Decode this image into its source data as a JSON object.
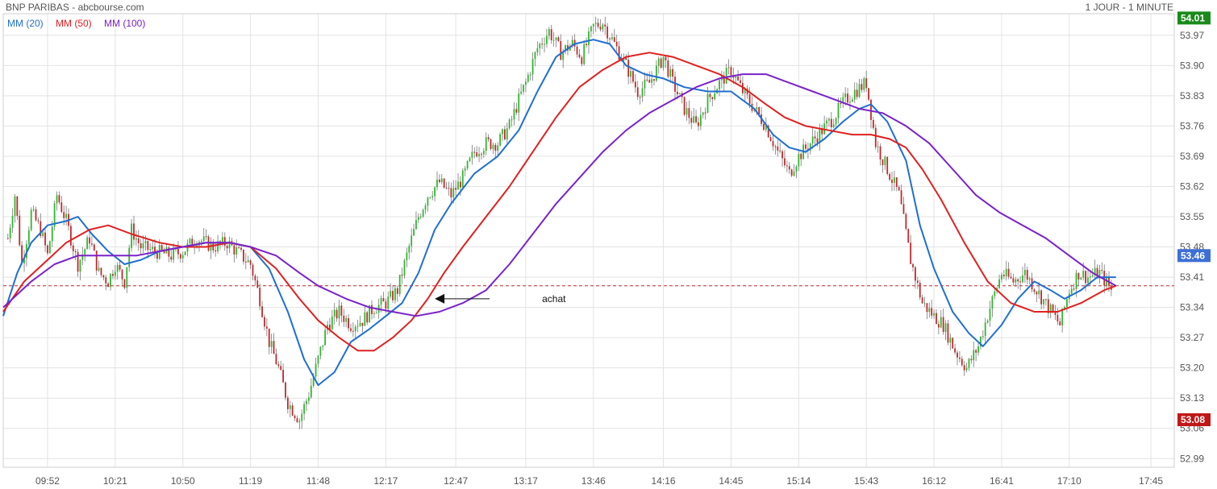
{
  "header": {
    "title": "BNP PARIBAS - abcbourse.com",
    "timeframe": "1 JOUR - 1 MINUTE"
  },
  "legend": [
    {
      "label": "MM (20)",
      "color": "#1f6fd0"
    },
    {
      "label": "MM (50)",
      "color": "#e02020"
    },
    {
      "label": "MM (100)",
      "color": "#7a22c8"
    }
  ],
  "colors": {
    "up": "#2db82d",
    "down": "#c0282c",
    "grid": "#e3e3e3",
    "reference_line": "#c0282c",
    "annotation": "#111111"
  },
  "badges": {
    "high": {
      "label": "54.01",
      "value": 54.01,
      "color": "#1a8a1a"
    },
    "current": {
      "label": "53.46",
      "value": 53.46,
      "color": "#3d6fd6"
    },
    "low": {
      "label": "53.08",
      "value": 53.08,
      "color": "#c01818"
    }
  },
  "annotation": {
    "text": "achat"
  },
  "chart_data": {
    "type": "candlestick",
    "x_ticks": [
      "09:52",
      "10:21",
      "10:50",
      "11:19",
      "11:48",
      "12:17",
      "12:47",
      "13:17",
      "13:46",
      "14:16",
      "14:45",
      "15:14",
      "15:43",
      "16:12",
      "16:41",
      "17:10",
      "17:45"
    ],
    "y_ticks": [
      53.97,
      53.9,
      53.83,
      53.76,
      53.69,
      53.62,
      53.55,
      53.48,
      53.41,
      53.34,
      53.27,
      53.2,
      53.13,
      53.06,
      52.99
    ],
    "y_range": [
      52.97,
      54.02
    ],
    "x_range": [
      "09:33",
      "17:55"
    ],
    "reference_level": 53.39,
    "annotation_point": {
      "time": "12:38",
      "price": 53.36
    },
    "price_path": [
      [
        "09:35",
        53.5
      ],
      [
        "09:38",
        53.6
      ],
      [
        "09:41",
        53.44
      ],
      [
        "09:45",
        53.56
      ],
      [
        "09:49",
        53.52
      ],
      [
        "09:52",
        53.46
      ],
      [
        "09:56",
        53.6
      ],
      [
        "10:00",
        53.54
      ],
      [
        "10:05",
        53.44
      ],
      [
        "10:10",
        53.5
      ],
      [
        "10:14",
        53.42
      ],
      [
        "10:18",
        53.4
      ],
      [
        "10:21",
        53.44
      ],
      [
        "10:25",
        53.4
      ],
      [
        "10:28",
        53.52
      ],
      [
        "10:32",
        53.48
      ],
      [
        "10:38",
        53.47
      ],
      [
        "10:45",
        53.46
      ],
      [
        "10:50",
        53.47
      ],
      [
        "10:56",
        53.5
      ],
      [
        "11:03",
        53.48
      ],
      [
        "11:09",
        53.49
      ],
      [
        "11:15",
        53.46
      ],
      [
        "11:19",
        53.44
      ],
      [
        "11:23",
        53.36
      ],
      [
        "11:27",
        53.26
      ],
      [
        "11:31",
        53.2
      ],
      [
        "11:35",
        53.12
      ],
      [
        "11:40",
        53.08
      ],
      [
        "11:44",
        53.14
      ],
      [
        "11:48",
        53.22
      ],
      [
        "11:52",
        53.3
      ],
      [
        "11:57",
        53.33
      ],
      [
        "12:02",
        53.3
      ],
      [
        "12:07",
        53.31
      ],
      [
        "12:12",
        53.34
      ],
      [
        "12:17",
        53.35
      ],
      [
        "12:22",
        53.38
      ],
      [
        "12:27",
        53.48
      ],
      [
        "12:31",
        53.55
      ],
      [
        "12:35",
        53.6
      ],
      [
        "12:40",
        53.63
      ],
      [
        "12:45",
        53.6
      ],
      [
        "12:50",
        53.64
      ],
      [
        "12:55",
        53.7
      ],
      [
        "13:00",
        53.72
      ],
      [
        "13:05",
        53.72
      ],
      [
        "13:10",
        53.76
      ],
      [
        "13:14",
        53.82
      ],
      [
        "13:17",
        53.86
      ],
      [
        "13:22",
        53.94
      ],
      [
        "13:27",
        53.98
      ],
      [
        "13:32",
        53.93
      ],
      [
        "13:37",
        53.95
      ],
      [
        "13:41",
        53.92
      ],
      [
        "13:46",
        53.99
      ],
      [
        "13:50",
        54.0
      ],
      [
        "13:55",
        53.95
      ],
      [
        "14:00",
        53.9
      ],
      [
        "14:05",
        53.84
      ],
      [
        "14:10",
        53.86
      ],
      [
        "14:16",
        53.92
      ],
      [
        "14:20",
        53.86
      ],
      [
        "14:25",
        53.8
      ],
      [
        "14:30",
        53.76
      ],
      [
        "14:35",
        53.82
      ],
      [
        "14:40",
        53.86
      ],
      [
        "14:45",
        53.89
      ],
      [
        "14:50",
        53.84
      ],
      [
        "14:55",
        53.8
      ],
      [
        "15:00",
        53.76
      ],
      [
        "15:05",
        53.7
      ],
      [
        "15:10",
        53.65
      ],
      [
        "15:14",
        53.69
      ],
      [
        "15:19",
        53.72
      ],
      [
        "15:24",
        53.75
      ],
      [
        "15:29",
        53.78
      ],
      [
        "15:34",
        53.82
      ],
      [
        "15:38",
        53.84
      ],
      [
        "15:43",
        53.86
      ],
      [
        "15:47",
        53.72
      ],
      [
        "15:52",
        53.66
      ],
      [
        "15:57",
        53.6
      ],
      [
        "16:02",
        53.45
      ],
      [
        "16:07",
        53.35
      ],
      [
        "16:12",
        53.32
      ],
      [
        "16:16",
        53.3
      ],
      [
        "16:21",
        53.24
      ],
      [
        "16:26",
        53.2
      ],
      [
        "16:31",
        53.25
      ],
      [
        "16:36",
        53.34
      ],
      [
        "16:41",
        53.42
      ],
      [
        "16:46",
        53.4
      ],
      [
        "16:51",
        53.42
      ],
      [
        "16:56",
        53.38
      ],
      [
        "17:01",
        53.34
      ],
      [
        "17:06",
        53.3
      ],
      [
        "17:10",
        53.38
      ],
      [
        "17:14",
        53.42
      ],
      [
        "17:18",
        53.41
      ],
      [
        "17:23",
        53.42
      ],
      [
        "17:28",
        53.38
      ]
    ],
    "series": [
      {
        "name": "MM (20)",
        "color": "#1f6fd0",
        "points": [
          [
            "09:33",
            53.32
          ],
          [
            "09:39",
            53.42
          ],
          [
            "09:45",
            53.49
          ],
          [
            "09:52",
            53.53
          ],
          [
            "10:00",
            53.54
          ],
          [
            "10:05",
            53.55
          ],
          [
            "10:11",
            53.51
          ],
          [
            "10:18",
            53.47
          ],
          [
            "10:25",
            53.44
          ],
          [
            "10:32",
            53.45
          ],
          [
            "10:40",
            53.47
          ],
          [
            "10:50",
            53.48
          ],
          [
            "11:00",
            53.49
          ],
          [
            "11:10",
            53.49
          ],
          [
            "11:19",
            53.48
          ],
          [
            "11:27",
            53.43
          ],
          [
            "11:35",
            53.33
          ],
          [
            "11:42",
            53.22
          ],
          [
            "11:48",
            53.16
          ],
          [
            "11:55",
            53.19
          ],
          [
            "12:02",
            53.26
          ],
          [
            "12:10",
            53.29
          ],
          [
            "12:17",
            53.32
          ],
          [
            "12:24",
            53.35
          ],
          [
            "12:31",
            53.42
          ],
          [
            "12:38",
            53.52
          ],
          [
            "12:45",
            53.58
          ],
          [
            "12:55",
            53.65
          ],
          [
            "13:05",
            53.69
          ],
          [
            "13:14",
            53.75
          ],
          [
            "13:22",
            53.84
          ],
          [
            "13:30",
            53.92
          ],
          [
            "13:38",
            53.95
          ],
          [
            "13:46",
            53.96
          ],
          [
            "13:53",
            53.95
          ],
          [
            "14:00",
            53.9
          ],
          [
            "14:08",
            53.88
          ],
          [
            "14:16",
            53.87
          ],
          [
            "14:25",
            53.85
          ],
          [
            "14:35",
            53.84
          ],
          [
            "14:45",
            53.84
          ],
          [
            "14:55",
            53.8
          ],
          [
            "15:03",
            53.74
          ],
          [
            "15:10",
            53.71
          ],
          [
            "15:17",
            53.7
          ],
          [
            "15:25",
            53.73
          ],
          [
            "15:33",
            53.77
          ],
          [
            "15:40",
            53.8
          ],
          [
            "15:45",
            53.81
          ],
          [
            "15:52",
            53.77
          ],
          [
            "16:00",
            53.68
          ],
          [
            "16:06",
            53.53
          ],
          [
            "16:12",
            53.43
          ],
          [
            "16:20",
            53.33
          ],
          [
            "16:27",
            53.28
          ],
          [
            "16:33",
            53.25
          ],
          [
            "16:41",
            53.3
          ],
          [
            "16:48",
            53.36
          ],
          [
            "16:55",
            53.4
          ],
          [
            "17:02",
            53.38
          ],
          [
            "17:08",
            53.36
          ],
          [
            "17:15",
            53.38
          ],
          [
            "17:22",
            53.41
          ],
          [
            "17:30",
            53.41
          ]
        ]
      },
      {
        "name": "MM (50)",
        "color": "#e02020",
        "points": [
          [
            "09:33",
            53.33
          ],
          [
            "09:42",
            53.4
          ],
          [
            "09:52",
            53.45
          ],
          [
            "10:00",
            53.49
          ],
          [
            "10:10",
            53.52
          ],
          [
            "10:18",
            53.53
          ],
          [
            "10:28",
            53.51
          ],
          [
            "10:40",
            53.49
          ],
          [
            "10:50",
            53.48
          ],
          [
            "11:00",
            53.48
          ],
          [
            "11:10",
            53.49
          ],
          [
            "11:19",
            53.48
          ],
          [
            "11:30",
            53.43
          ],
          [
            "11:40",
            53.36
          ],
          [
            "11:48",
            53.31
          ],
          [
            "11:57",
            53.27
          ],
          [
            "12:05",
            53.24
          ],
          [
            "12:12",
            53.24
          ],
          [
            "12:20",
            53.27
          ],
          [
            "12:28",
            53.31
          ],
          [
            "12:35",
            53.36
          ],
          [
            "12:42",
            53.42
          ],
          [
            "12:50",
            53.48
          ],
          [
            "13:00",
            53.55
          ],
          [
            "13:10",
            53.62
          ],
          [
            "13:20",
            53.7
          ],
          [
            "13:30",
            53.78
          ],
          [
            "13:40",
            53.85
          ],
          [
            "13:50",
            53.89
          ],
          [
            "14:00",
            53.92
          ],
          [
            "14:10",
            53.93
          ],
          [
            "14:20",
            53.92
          ],
          [
            "14:30",
            53.9
          ],
          [
            "14:40",
            53.88
          ],
          [
            "14:50",
            53.85
          ],
          [
            "15:00",
            53.81
          ],
          [
            "15:08",
            53.78
          ],
          [
            "15:17",
            53.76
          ],
          [
            "15:27",
            53.75
          ],
          [
            "15:37",
            53.74
          ],
          [
            "15:45",
            53.74
          ],
          [
            "15:53",
            53.73
          ],
          [
            "16:00",
            53.71
          ],
          [
            "16:07",
            53.66
          ],
          [
            "16:15",
            53.59
          ],
          [
            "16:25",
            53.49
          ],
          [
            "16:35",
            53.4
          ],
          [
            "16:45",
            53.35
          ],
          [
            "16:55",
            53.33
          ],
          [
            "17:05",
            53.33
          ],
          [
            "17:15",
            53.35
          ],
          [
            "17:25",
            53.38
          ],
          [
            "17:30",
            53.39
          ]
        ]
      },
      {
        "name": "MM (100)",
        "color": "#7a22c8",
        "points": [
          [
            "09:33",
            53.34
          ],
          [
            "09:45",
            53.4
          ],
          [
            "09:55",
            53.44
          ],
          [
            "10:05",
            53.46
          ],
          [
            "10:15",
            53.46
          ],
          [
            "10:30",
            53.46
          ],
          [
            "10:40",
            53.47
          ],
          [
            "10:50",
            53.48
          ],
          [
            "11:00",
            53.49
          ],
          [
            "11:10",
            53.49
          ],
          [
            "11:19",
            53.48
          ],
          [
            "11:30",
            53.46
          ],
          [
            "11:40",
            53.42
          ],
          [
            "11:48",
            53.39
          ],
          [
            "12:00",
            53.36
          ],
          [
            "12:10",
            53.34
          ],
          [
            "12:20",
            53.33
          ],
          [
            "12:30",
            53.32
          ],
          [
            "12:40",
            53.33
          ],
          [
            "12:50",
            53.35
          ],
          [
            "13:00",
            53.38
          ],
          [
            "13:10",
            53.44
          ],
          [
            "13:20",
            53.51
          ],
          [
            "13:30",
            53.58
          ],
          [
            "13:40",
            53.64
          ],
          [
            "13:50",
            53.7
          ],
          [
            "14:00",
            53.75
          ],
          [
            "14:10",
            53.79
          ],
          [
            "14:20",
            53.82
          ],
          [
            "14:30",
            53.85
          ],
          [
            "14:40",
            53.87
          ],
          [
            "14:50",
            53.88
          ],
          [
            "15:00",
            53.88
          ],
          [
            "15:10",
            53.86
          ],
          [
            "15:20",
            53.84
          ],
          [
            "15:30",
            53.82
          ],
          [
            "15:40",
            53.8
          ],
          [
            "15:50",
            53.79
          ],
          [
            "16:00",
            53.76
          ],
          [
            "16:10",
            53.72
          ],
          [
            "16:20",
            53.66
          ],
          [
            "16:30",
            53.6
          ],
          [
            "16:40",
            53.56
          ],
          [
            "16:50",
            53.53
          ],
          [
            "17:00",
            53.5
          ],
          [
            "17:10",
            53.46
          ],
          [
            "17:20",
            53.42
          ],
          [
            "17:30",
            53.39
          ]
        ]
      }
    ]
  }
}
